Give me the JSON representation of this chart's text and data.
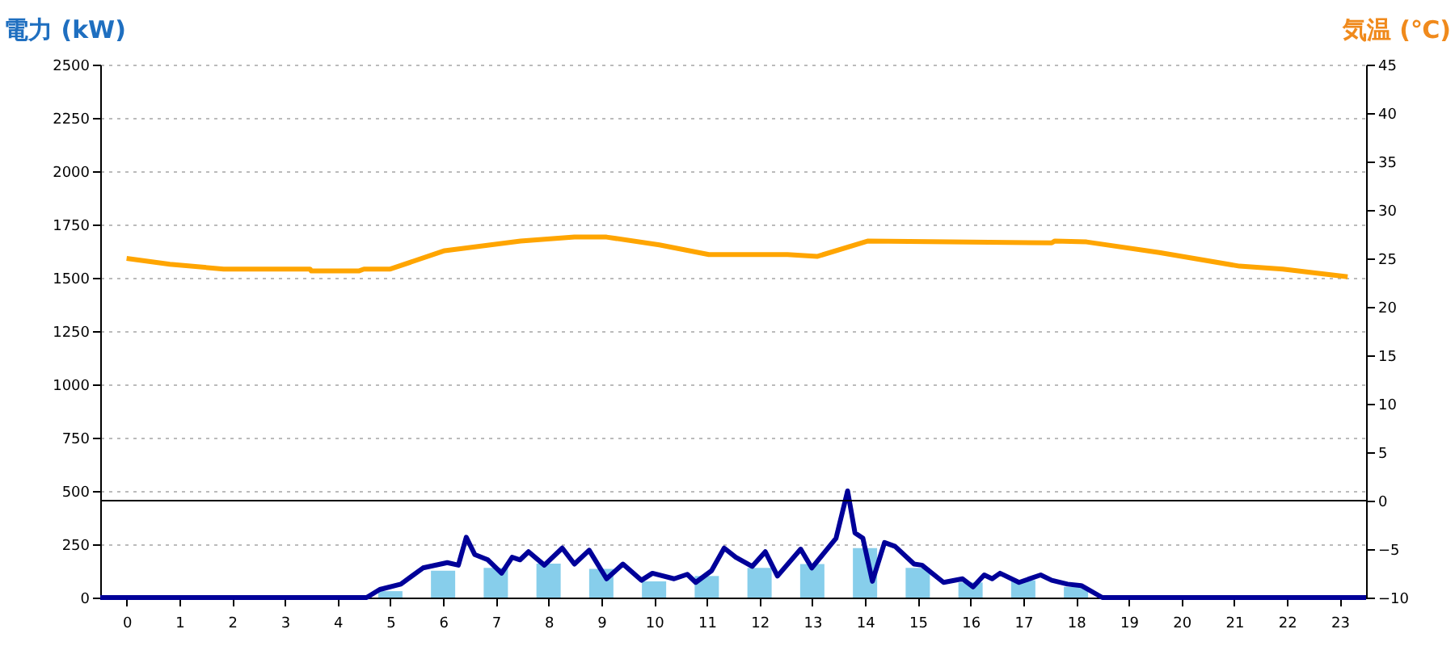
{
  "chart_data": {
    "type": "bar",
    "ylabel": "電力 (kW)",
    "y2label": "気温 (℃)",
    "x": [
      0,
      1,
      2,
      3,
      4,
      5,
      6,
      7,
      8,
      9,
      10,
      11,
      12,
      13,
      14,
      15,
      16,
      17,
      18,
      19,
      20,
      21,
      22,
      23
    ],
    "xlim": [
      -0.5,
      23.5
    ],
    "xticks": [
      0,
      1,
      2,
      3,
      4,
      5,
      6,
      7,
      8,
      9,
      10,
      11,
      12,
      13,
      14,
      15,
      16,
      17,
      18,
      19,
      20,
      21,
      22,
      23
    ],
    "ylim": [
      0,
      2500
    ],
    "yticks": [
      0,
      250,
      500,
      750,
      1000,
      1250,
      1500,
      1750,
      2000,
      2250,
      2500
    ],
    "y2lim": [
      -10,
      45
    ],
    "y2ticks": [
      -10,
      -5,
      0,
      5,
      10,
      15,
      20,
      25,
      30,
      35,
      40,
      45
    ],
    "grid": "y",
    "line_style": "solid",
    "marker": "none",
    "series": [
      {
        "color": "#87ceeb",
        "values": [
          0,
          0,
          0,
          0,
          0,
          30,
          126,
          139,
          159,
          134,
          76,
          101,
          139,
          157,
          232,
          139,
          71,
          81,
          50,
          0,
          0,
          0,
          0,
          0
        ]
      },
      {
        "type": "line",
        "color": "#000099",
        "x": [
          -0.5,
          4.55,
          4.8,
          5.2,
          5.62,
          6.08,
          6.29,
          6.44,
          6.6,
          6.85,
          7.11,
          7.31,
          7.46,
          7.62,
          7.92,
          8.26,
          8.49,
          8.77,
          9.1,
          9.41,
          9.76,
          9.97,
          10.38,
          10.63,
          10.79,
          11.09,
          11.33,
          11.55,
          11.86,
          12.11,
          12.34,
          12.78,
          12.99,
          13.45,
          13.67,
          13.81,
          13.96,
          14.14,
          14.37,
          14.57,
          14.93,
          15.08,
          15.49,
          15.85,
          16.05,
          16.26,
          16.41,
          16.56,
          16.92,
          17.33,
          17.54,
          17.84,
          18.1,
          18.5,
          23.5
        ],
        "values": [
          0,
          0,
          38,
          63,
          139,
          164,
          152,
          283,
          202,
          177,
          114,
          189,
          177,
          215,
          152,
          232,
          157,
          222,
          88,
          157,
          81,
          114,
          88,
          109,
          71,
          126,
          232,
          189,
          146,
          215,
          101,
          227,
          139,
          278,
          500,
          303,
          278,
          76,
          258,
          240,
          157,
          152,
          71,
          88,
          50,
          106,
          88,
          114,
          71,
          106,
          81,
          63,
          56,
          0,
          0
        ]
      },
      {
        "type": "line",
        "axis": "y2",
        "color": "#ffa500",
        "x": [
          0,
          0.82,
          1.84,
          3.48,
          3.5,
          4.4,
          4.5,
          5.0,
          6.03,
          7.47,
          8.49,
          9.1,
          10.1,
          11.04,
          11.55,
          12.53,
          13.09,
          14.06,
          15.6,
          17.54,
          17.6,
          18.2,
          19.58,
          21.1,
          21.92,
          23.15
        ],
        "values": [
          25.0,
          24.4,
          23.9,
          23.9,
          23.7,
          23.7,
          23.9,
          23.9,
          25.8,
          26.8,
          27.2,
          27.2,
          26.4,
          25.4,
          25.4,
          25.4,
          25.2,
          26.8,
          26.7,
          26.6,
          26.8,
          26.7,
          25.6,
          24.2,
          23.9,
          23.1
        ]
      }
    ],
    "ref_lines": [
      {
        "axis": "y2",
        "value": 0,
        "color": "#000000"
      }
    ]
  }
}
